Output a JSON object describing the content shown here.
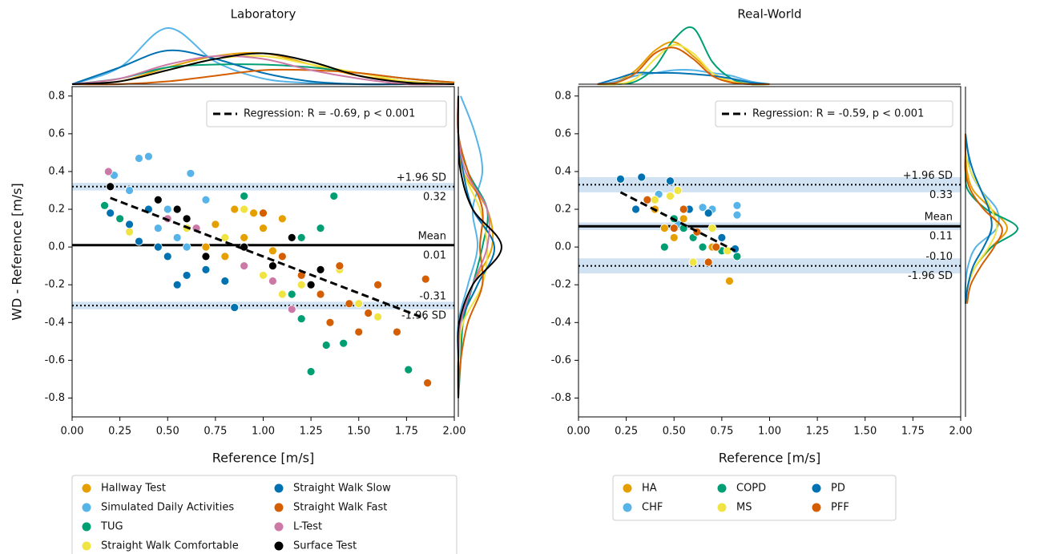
{
  "chart_data": [
    {
      "type": "scatter",
      "title": "Laboratory",
      "x_label": "Reference [m/s]",
      "y_label": "WD - Reference [m/s]",
      "xlim": [
        0,
        2
      ],
      "ylim": [
        -0.9,
        0.85
      ],
      "xticks": [
        {
          "value": 0,
          "label": "0.00"
        },
        0.25,
        {
          "value": 0.5,
          "label": "0.50"
        },
        0.75,
        {
          "value": 1,
          "label": "1.00"
        },
        1.25,
        {
          "value": 1.5,
          "label": "1.50"
        },
        1.75,
        {
          "value": 2,
          "label": "2.00"
        }
      ],
      "yticks": [
        -0.8,
        -0.6,
        -0.4,
        -0.2,
        {
          "value": 0,
          "label": "0.0"
        },
        0.2,
        0.4,
        0.6,
        0.8
      ],
      "regression": {
        "label": "Regression: R = -0.69, p < 0.001",
        "x": [
          0.2,
          1.85
        ],
        "y": [
          0.26,
          -0.38
        ]
      },
      "limits": [
        {
          "name": "+1.96 SD",
          "value": 0.32,
          "style": "dotted",
          "name_position": "above",
          "ci": [
            0.3,
            0.34
          ]
        },
        {
          "name": "Mean",
          "value": 0.01,
          "style": "solid",
          "name_position": "above"
        },
        {
          "name": "-1.96 SD",
          "value": -0.31,
          "style": "dotted",
          "name_position": "below",
          "ci": [
            -0.33,
            -0.29
          ]
        }
      ],
      "legend_columns": 2,
      "kde_top_x": [
        0,
        0.25,
        0.5,
        0.75,
        1,
        1.25,
        1.5,
        1.75,
        2
      ],
      "kde_right_y": [
        -0.8,
        -0.6,
        -0.4,
        -0.2,
        0,
        0.2,
        0.4,
        0.6,
        0.8
      ],
      "series": [
        {
          "name": "Hallway Test",
          "color": "#e69f00",
          "x": [
            0.6,
            0.75,
            0.85,
            0.9,
            0.95,
            1.0,
            1.05,
            1.1,
            0.7,
            0.8
          ],
          "values": [
            0.15,
            0.12,
            0.2,
            0.05,
            0.18,
            0.1,
            -0.02,
            0.15,
            0.0,
            -0.05
          ],
          "kde_top": [
            0,
            0.05,
            0.3,
            0.5,
            0.55,
            0.35,
            0.15,
            0.05,
            0
          ],
          "kde_right": [
            0,
            0,
            0.02,
            0.3,
            0.7,
            0.6,
            0.1,
            0,
            0
          ]
        },
        {
          "name": "Simulated Daily Activities",
          "color": "#56b4e9",
          "x": [
            0.22,
            0.35,
            0.4,
            0.3,
            0.45,
            0.5,
            0.62,
            0.55,
            0.6,
            0.7
          ],
          "values": [
            0.38,
            0.47,
            0.48,
            0.3,
            0.1,
            0.2,
            0.39,
            0.05,
            0.0,
            0.25
          ],
          "kde_top": [
            0,
            0.3,
            1.0,
            0.4,
            0.1,
            0.02,
            0,
            0,
            0
          ],
          "kde_right": [
            0,
            0,
            0,
            0.2,
            0.4,
            0.3,
            0.5,
            0.35,
            0.05
          ]
        },
        {
          "name": "TUG",
          "color": "#009e73",
          "x": [
            0.17,
            0.25,
            0.9,
            1.2,
            1.3,
            1.37,
            1.25,
            1.33,
            1.42,
            1.76,
            1.15,
            1.2
          ],
          "values": [
            0.22,
            0.15,
            0.27,
            0.05,
            0.1,
            0.27,
            -0.66,
            -0.52,
            -0.51,
            -0.65,
            -0.25,
            -0.38
          ],
          "kde_top": [
            0,
            0.1,
            0.3,
            0.35,
            0.35,
            0.3,
            0.2,
            0.1,
            0.03
          ],
          "kde_right": [
            0,
            0.05,
            0.1,
            0.3,
            0.5,
            0.6,
            0.2,
            0,
            0
          ]
        },
        {
          "name": "Straight Walk Comfortable",
          "color": "#f0e442",
          "x": [
            0.3,
            0.6,
            0.8,
            1.0,
            1.1,
            1.2,
            1.4,
            1.5,
            1.6,
            0.9
          ],
          "values": [
            0.08,
            0.1,
            0.05,
            -0.15,
            -0.25,
            -0.2,
            -0.12,
            -0.3,
            -0.37,
            0.2
          ],
          "kde_top": [
            0,
            0.05,
            0.25,
            0.45,
            0.5,
            0.35,
            0.2,
            0.05,
            0
          ],
          "kde_right": [
            0,
            0,
            0.1,
            0.5,
            0.6,
            0.45,
            0.1,
            0,
            0
          ]
        },
        {
          "name": "Straight Walk Slow",
          "color": "#0072b2",
          "x": [
            0.2,
            0.3,
            0.35,
            0.45,
            0.5,
            0.55,
            0.6,
            0.7,
            0.8,
            0.85,
            0.4
          ],
          "values": [
            0.18,
            0.12,
            0.03,
            0.0,
            -0.05,
            -0.2,
            -0.15,
            -0.12,
            -0.18,
            -0.32,
            0.2
          ],
          "kde_top": [
            0,
            0.3,
            0.6,
            0.45,
            0.2,
            0.05,
            0,
            0,
            0
          ],
          "kde_right": [
            0,
            0,
            0.05,
            0.4,
            0.75,
            0.3,
            0.1,
            0,
            0
          ]
        },
        {
          "name": "Straight Walk Fast",
          "color": "#d55e00",
          "x": [
            1.0,
            1.1,
            1.2,
            1.3,
            1.35,
            1.45,
            1.55,
            1.6,
            1.7,
            1.85,
            1.86,
            1.4,
            1.5
          ],
          "values": [
            0.18,
            -0.05,
            -0.15,
            -0.25,
            -0.4,
            -0.3,
            -0.35,
            -0.2,
            -0.45,
            -0.17,
            -0.72,
            -0.1,
            -0.45
          ],
          "kde_top": [
            0,
            0,
            0.05,
            0.15,
            0.25,
            0.25,
            0.2,
            0.1,
            0.03
          ],
          "kde_right": [
            0,
            0.05,
            0.2,
            0.5,
            0.45,
            0.5,
            0.2,
            0,
            0
          ]
        },
        {
          "name": "L-Test",
          "color": "#cc79a7",
          "x": [
            0.19,
            0.5,
            0.65,
            0.9,
            1.15,
            1.05
          ],
          "values": [
            0.4,
            0.15,
            0.1,
            -0.1,
            -0.33,
            -0.18
          ],
          "kde_top": [
            0,
            0.1,
            0.35,
            0.5,
            0.45,
            0.25,
            0.1,
            0,
            0
          ],
          "kde_right": [
            0,
            0,
            0.05,
            0.3,
            0.6,
            0.6,
            0.15,
            0,
            0
          ]
        },
        {
          "name": "Surface Test",
          "color": "#000000",
          "x": [
            0.2,
            0.45,
            0.55,
            0.7,
            0.9,
            1.05,
            1.15,
            1.25,
            1.3,
            0.6
          ],
          "values": [
            0.32,
            0.25,
            0.2,
            -0.05,
            0.0,
            -0.1,
            0.05,
            -0.2,
            -0.12,
            0.15
          ],
          "kde_top": [
            0,
            0.05,
            0.25,
            0.45,
            0.55,
            0.4,
            0.15,
            0.03,
            0
          ],
          "kde_right": [
            0,
            0,
            0.02,
            0.3,
            0.9,
            0.3,
            0.05,
            0,
            0
          ]
        }
      ]
    },
    {
      "type": "scatter",
      "title": "Real-World",
      "x_label": "Reference [m/s]",
      "xlim": [
        0,
        2
      ],
      "ylim": [
        -0.9,
        0.85
      ],
      "xticks": [
        {
          "value": 0,
          "label": "0.00"
        },
        0.25,
        {
          "value": 0.5,
          "label": "0.50"
        },
        0.75,
        {
          "value": 1,
          "label": "1.00"
        },
        1.25,
        {
          "value": 1.5,
          "label": "1.50"
        },
        1.75,
        {
          "value": 2,
          "label": "2.00"
        }
      ],
      "yticks": [
        -0.8,
        -0.6,
        -0.4,
        -0.2,
        {
          "value": 0,
          "label": "0.0"
        },
        0.2,
        0.4,
        0.6,
        0.8
      ],
      "regression": {
        "label": "Regression: R = -0.59, p < 0.001",
        "x": [
          0.22,
          0.82
        ],
        "y": [
          0.29,
          -0.02
        ]
      },
      "limits": [
        {
          "name": "+1.96 SD",
          "value": 0.33,
          "style": "dotted",
          "name_position": "above",
          "ci": [
            0.29,
            0.37
          ]
        },
        {
          "name": "Mean",
          "value": 0.11,
          "style": "solid",
          "name_position": "above",
          "ci": [
            0.09,
            0.13
          ]
        },
        {
          "name": "-1.96 SD",
          "value": -0.1,
          "value_label": "-0.10",
          "style": "dotted",
          "name_position": "below",
          "ci": [
            -0.14,
            -0.06
          ]
        }
      ],
      "legend_columns": 3,
      "kde_top_x": [
        0.1,
        0.2,
        0.3,
        0.4,
        0.5,
        0.6,
        0.7,
        0.8,
        0.9,
        1.0
      ],
      "kde_right_y": [
        -0.3,
        -0.2,
        -0.1,
        0,
        0.1,
        0.2,
        0.3,
        0.4,
        0.5,
        0.6
      ],
      "series": [
        {
          "name": "HA",
          "color": "#e69f00",
          "x": [
            0.45,
            0.5,
            0.55,
            0.6,
            0.7,
            0.79,
            0.4
          ],
          "values": [
            0.1,
            0.05,
            0.15,
            0.05,
            0.0,
            -0.18,
            0.2
          ],
          "kde_top": [
            0,
            0.05,
            0.25,
            0.6,
            0.75,
            0.5,
            0.2,
            0.05,
            0,
            0
          ],
          "kde_right": [
            0,
            0.05,
            0.2,
            0.5,
            0.8,
            0.5,
            0.15,
            0.03,
            0,
            0
          ]
        },
        {
          "name": "CHF",
          "color": "#56b4e9",
          "x": [
            0.42,
            0.65,
            0.7,
            0.83,
            0.83,
            0.52
          ],
          "values": [
            0.28,
            0.21,
            0.2,
            0.22,
            0.17,
            0.12
          ],
          "kde_top": [
            0,
            0.05,
            0.15,
            0.2,
            0.25,
            0.25,
            0.2,
            0.15,
            0.05,
            0
          ],
          "kde_right": [
            0,
            0,
            0.05,
            0.2,
            0.6,
            0.6,
            0.3,
            0.1,
            0.05,
            0
          ]
        },
        {
          "name": "COPD",
          "color": "#009e73",
          "x": [
            0.5,
            0.55,
            0.6,
            0.65,
            0.75,
            0.83,
            0.45
          ],
          "values": [
            0.15,
            0.1,
            0.05,
            0.0,
            -0.02,
            -0.05,
            0.0
          ],
          "kde_top": [
            0,
            0,
            0.05,
            0.3,
            0.8,
            1.0,
            0.4,
            0.1,
            0,
            0
          ],
          "kde_right": [
            0,
            0.05,
            0.2,
            0.5,
            1.0,
            0.4,
            0.05,
            0,
            0,
            0
          ]
        },
        {
          "name": "MS",
          "color": "#f0e442",
          "x": [
            0.4,
            0.48,
            0.52,
            0.6,
            0.78,
            0.7
          ],
          "values": [
            0.25,
            0.27,
            0.3,
            -0.08,
            -0.02,
            0.1
          ],
          "kde_top": [
            0,
            0,
            0.1,
            0.45,
            0.7,
            0.55,
            0.2,
            0.05,
            0,
            0
          ],
          "kde_right": [
            0,
            0.05,
            0.2,
            0.45,
            0.6,
            0.5,
            0.3,
            0.1,
            0,
            0
          ]
        },
        {
          "name": "PD",
          "color": "#0072b2",
          "x": [
            0.22,
            0.33,
            0.3,
            0.48,
            0.58,
            0.68,
            0.82,
            0.75
          ],
          "values": [
            0.36,
            0.37,
            0.2,
            0.35,
            0.2,
            0.18,
            -0.01,
            0.05
          ],
          "kde_top": [
            0,
            0.1,
            0.2,
            0.2,
            0.2,
            0.18,
            0.15,
            0.1,
            0.03,
            0
          ],
          "kde_right": [
            0,
            0.05,
            0.15,
            0.35,
            0.5,
            0.45,
            0.3,
            0.15,
            0.05,
            0
          ]
        },
        {
          "name": "PFF",
          "color": "#d55e00",
          "x": [
            0.36,
            0.5,
            0.55,
            0.62,
            0.68,
            0.72
          ],
          "values": [
            0.25,
            0.1,
            0.2,
            0.08,
            -0.08,
            0.0
          ],
          "kde_top": [
            0,
            0.03,
            0.2,
            0.55,
            0.65,
            0.45,
            0.15,
            0.03,
            0,
            0
          ],
          "kde_right": [
            0.03,
            0.1,
            0.3,
            0.55,
            0.7,
            0.35,
            0.1,
            0,
            0,
            0
          ]
        }
      ]
    }
  ]
}
